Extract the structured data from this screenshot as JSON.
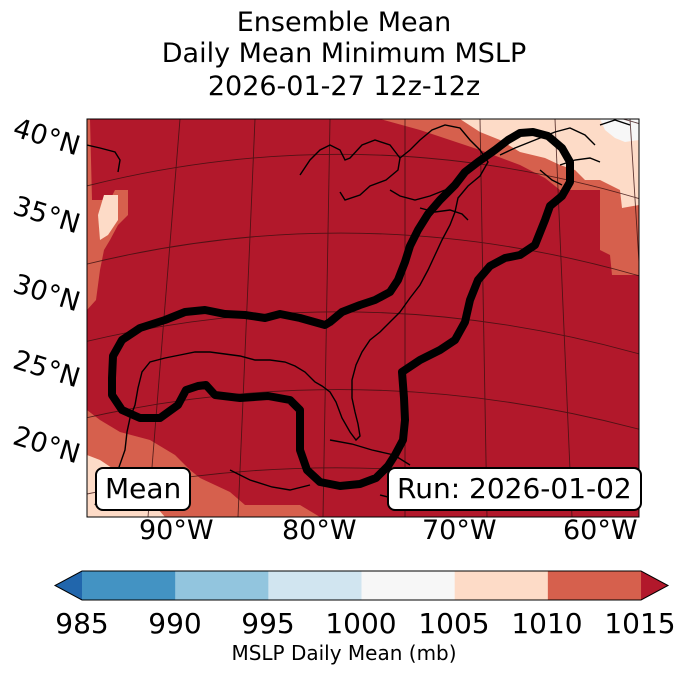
{
  "title": {
    "line1": "Ensemble Mean",
    "line2": "Daily Mean Minimum MSLP",
    "line3": "2026-01-27 12z-12z"
  },
  "map": {
    "lat_labels": [
      "40°N",
      "35°N",
      "30°N",
      "25°N",
      "20°N"
    ],
    "lon_labels": [
      "90°W",
      "80°W",
      "70°W",
      "60°W"
    ],
    "mean_box": "Mean",
    "run_box": "Run: 2026-01-02",
    "colors": {
      "c1005_1010": "#fddbc7",
      "c1010_1015": "#d6604d",
      "c1015_plus": "#b2182b",
      "c1000_1005": "#f7f7f7",
      "contour": "#000000"
    }
  },
  "colorbar": {
    "ticks": [
      "985",
      "990",
      "995",
      "1000",
      "1005",
      "1010",
      "1015"
    ],
    "label": "MSLP Daily Mean (mb)",
    "bins": [
      {
        "range": "<985",
        "color": "#2166ac"
      },
      {
        "range": "985-990",
        "color": "#4393c3"
      },
      {
        "range": "990-995",
        "color": "#92c5de"
      },
      {
        "range": "995-1000",
        "color": "#d1e5f0"
      },
      {
        "range": "1000-1005",
        "color": "#f7f7f7"
      },
      {
        "range": "1005-1010",
        "color": "#fddbc7"
      },
      {
        "range": "1010-1015",
        "color": "#d6604d"
      },
      {
        "range": ">1015",
        "color": "#b2182b"
      }
    ]
  }
}
